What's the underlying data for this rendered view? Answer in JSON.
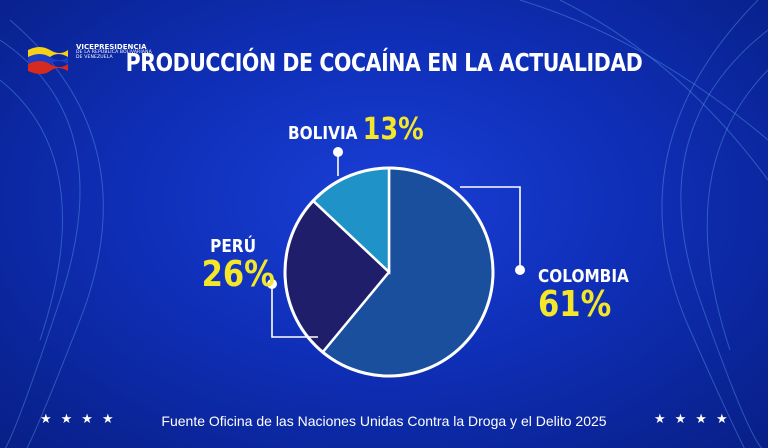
{
  "logo": {
    "line1": "VICEPRESIDENCIA",
    "line2": "DE LA REPÚBLICA BOLIVARIANA",
    "line3": "DE VENEZUELA"
  },
  "footer": {
    "source": "Fuente Oficina de las Naciones Unidas Contra la Droga y el Delito 2025",
    "stars": "★★★★"
  },
  "colors": {
    "background": "#0f2fb8",
    "accent_yellow": "#f4e628"
  },
  "chart_data": {
    "type": "pie",
    "title": "PRODUCCIÓN DE COCAÍNA EN LA ACTUALIDAD",
    "slices": [
      {
        "label": "COLOMBIA",
        "value": 61,
        "display": "61%",
        "color": "#1a4f9e"
      },
      {
        "label": "PERÚ",
        "value": 26,
        "display": "26%",
        "color": "#1f1e6a"
      },
      {
        "label": "BOLIVIA",
        "value": 13,
        "display": "13%",
        "color": "#1f93c8"
      }
    ]
  }
}
